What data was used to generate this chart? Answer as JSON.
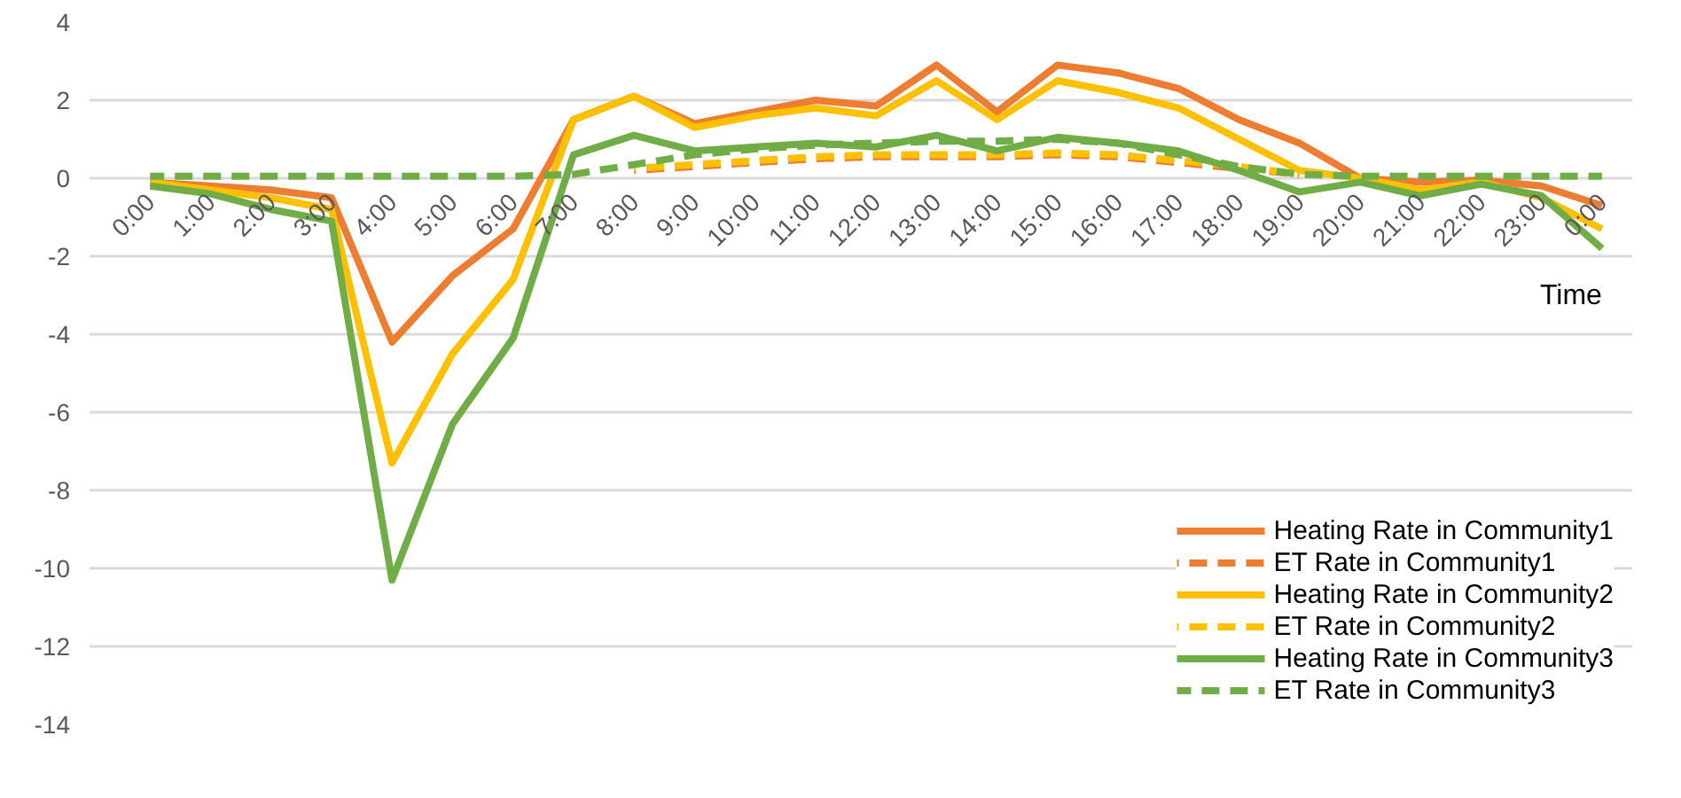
{
  "chart_data": {
    "type": "line",
    "xlabel": "Time",
    "categories": [
      "0:00",
      "1:00",
      "2:00",
      "3:00",
      "4:00",
      "5:00",
      "6:00",
      "7:00",
      "8:00",
      "9:00",
      "10:00",
      "11:00",
      "12:00",
      "13:00",
      "14:00",
      "15:00",
      "16:00",
      "17:00",
      "18:00",
      "19:00",
      "20:00",
      "21:00",
      "22:00",
      "23:00",
      "0:00"
    ],
    "ylim": [
      -14,
      4
    ],
    "yticks": [
      -14,
      -12,
      -10,
      -8,
      -6,
      -4,
      -2,
      0,
      2,
      4
    ],
    "grid": "y",
    "legend": "bottom right",
    "series": [
      {
        "name": "Heating Rate in Community1",
        "color": "#ed7d31",
        "line_style": "solid",
        "values": [
          -0.1,
          -0.2,
          -0.3,
          -0.5,
          -4.2,
          -2.5,
          -1.3,
          1.5,
          2.1,
          1.4,
          1.7,
          2.0,
          1.85,
          2.9,
          1.7,
          2.9,
          2.7,
          2.3,
          1.5,
          0.9,
          0,
          -0.1,
          -0.05,
          -0.2,
          -0.7
        ]
      },
      {
        "name": "ET Rate in Community1",
        "color": "#ed7d31",
        "line_style": "dashed",
        "values": [
          null,
          null,
          null,
          null,
          null,
          null,
          null,
          null,
          0.2,
          0.3,
          0.4,
          0.5,
          0.55,
          0.55,
          0.55,
          0.6,
          0.55,
          0.4,
          0.25,
          0.1,
          null,
          null,
          null,
          null,
          null
        ]
      },
      {
        "name": "Heating Rate in Community2",
        "color": "#ffc000",
        "line_style": "solid",
        "values": [
          -0.1,
          -0.3,
          -0.5,
          -0.8,
          -7.3,
          -4.5,
          -2.6,
          1.5,
          2.1,
          1.3,
          1.6,
          1.8,
          1.6,
          2.5,
          1.5,
          2.5,
          2.2,
          1.8,
          1.0,
          0.2,
          0,
          -0.3,
          -0.1,
          -0.5,
          -1.3
        ]
      },
      {
        "name": "ET Rate in Community2",
        "color": "#ffc000",
        "line_style": "dashed",
        "values": [
          null,
          null,
          null,
          null,
          null,
          null,
          null,
          null,
          0.25,
          0.35,
          0.45,
          0.55,
          0.6,
          0.6,
          0.6,
          0.65,
          0.6,
          0.45,
          0.3,
          0.1,
          null,
          null,
          null,
          null,
          null
        ]
      },
      {
        "name": "Heating Rate in Community3",
        "color": "#70ad47",
        "line_style": "solid",
        "values": [
          -0.2,
          -0.4,
          -0.8,
          -1.1,
          -10.3,
          -6.3,
          -4.1,
          0.6,
          1.1,
          0.7,
          0.8,
          0.9,
          0.8,
          1.1,
          0.7,
          1.05,
          0.9,
          0.7,
          0.2,
          -0.35,
          -0.1,
          -0.45,
          -0.15,
          -0.45,
          -1.8
        ]
      },
      {
        "name": "ET Rate in Community3",
        "color": "#70ad47",
        "line_style": "dashed",
        "values": [
          0.05,
          0.05,
          0.05,
          0.05,
          0.05,
          0.05,
          0.05,
          0.1,
          0.35,
          0.6,
          0.75,
          0.85,
          0.9,
          0.95,
          0.95,
          1.0,
          0.9,
          0.6,
          0.3,
          0.1,
          0.05,
          0.05,
          0.05,
          0.05,
          0.05
        ]
      }
    ]
  }
}
